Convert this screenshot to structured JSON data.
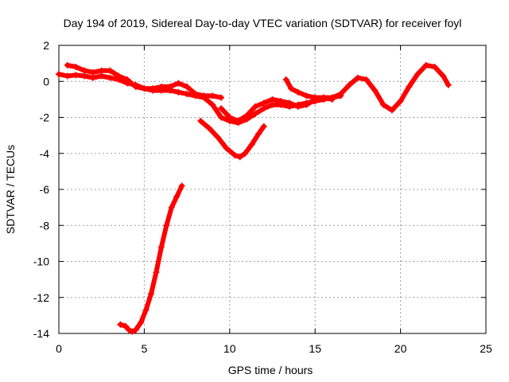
{
  "chart_data": {
    "type": "scatter",
    "title": "Day 194 of 2019, Sidereal Day-to-day VTEC variation (SDTVAR) for receiver foyl",
    "xlabel": "GPS time / hours",
    "ylabel": "SDTVAR / TECUs",
    "xlim": [
      0,
      25
    ],
    "ylim": [
      -14,
      2
    ],
    "xticks": [
      "0",
      "5",
      "10",
      "15",
      "20",
      "25"
    ],
    "yticks": [
      "2",
      "0",
      "-2",
      "-4",
      "-6",
      "-8",
      "-10",
      "-12",
      "-14"
    ],
    "grid": true,
    "marker_color": "#ff0000",
    "series": [
      {
        "name": "main-track",
        "x": [
          0.0,
          0.5,
          1.0,
          1.5,
          2.0,
          2.5,
          3.0,
          3.5,
          4.0,
          4.5,
          5.0,
          5.5,
          6.0,
          6.5,
          7.0,
          7.5,
          8.0,
          8.5,
          9.0,
          9.5,
          10.0,
          10.5,
          11.0,
          11.5,
          12.0,
          12.5,
          13.0,
          13.5,
          14.0,
          14.5,
          15.0,
          15.5,
          16.0,
          16.5,
          17.0,
          17.5,
          18.0,
          18.5,
          19.0,
          19.5,
          20.0,
          20.5,
          21.0,
          21.5,
          22.0,
          22.5,
          22.8
        ],
        "y": [
          0.4,
          0.3,
          0.35,
          0.3,
          0.2,
          0.3,
          0.2,
          0.1,
          -0.1,
          -0.2,
          -0.4,
          -0.5,
          -0.5,
          -0.5,
          -0.6,
          -0.7,
          -0.8,
          -0.9,
          -1.3,
          -2.0,
          -2.2,
          -2.3,
          -2.1,
          -1.8,
          -1.5,
          -1.3,
          -1.3,
          -1.4,
          -1.3,
          -1.2,
          -1.1,
          -1.0,
          -0.9,
          -0.7,
          -0.2,
          0.2,
          0.1,
          -0.5,
          -1.3,
          -1.6,
          -1.1,
          -0.3,
          0.4,
          0.9,
          0.8,
          0.3,
          -0.2
        ]
      },
      {
        "name": "upper-band",
        "x": [
          0.5,
          1.0,
          1.5,
          2.0,
          2.5,
          3.0,
          3.5,
          4.0,
          4.5,
          5.0,
          5.5,
          6.0,
          6.5,
          7.0,
          7.5,
          8.0,
          8.5,
          9.0,
          9.5
        ],
        "y": [
          0.9,
          0.8,
          0.6,
          0.5,
          0.6,
          0.6,
          0.3,
          0.1,
          -0.3,
          -0.4,
          -0.4,
          -0.3,
          -0.3,
          -0.1,
          -0.3,
          -0.7,
          -0.8,
          -0.8,
          -0.9
        ]
      },
      {
        "name": "secondary-track",
        "x": [
          9.5,
          10.0,
          10.5,
          11.0,
          11.5,
          12.0,
          12.5,
          13.0,
          13.5,
          14.0,
          14.5,
          15.0,
          15.5,
          16.0,
          16.5
        ],
        "y": [
          -1.5,
          -2.0,
          -2.2,
          -1.9,
          -1.4,
          -1.2,
          -1.0,
          -1.1,
          -1.2,
          -1.4,
          -1.3,
          -1.0,
          -0.9,
          -0.9,
          -0.8
        ]
      },
      {
        "name": "upper-branch",
        "x": [
          13.3,
          13.6,
          14.0,
          14.5,
          15.0,
          15.5,
          16.0
        ],
        "y": [
          0.1,
          -0.4,
          -0.6,
          -0.8,
          -0.9,
          -0.9,
          -1.0
        ]
      },
      {
        "name": "dip-track",
        "x": [
          8.3,
          8.8,
          9.3,
          9.8,
          10.3,
          10.6,
          10.9,
          11.3,
          11.7,
          12.0
        ],
        "y": [
          -2.2,
          -2.6,
          -3.1,
          -3.7,
          -4.1,
          -4.2,
          -4.0,
          -3.5,
          -2.9,
          -2.5
        ]
      },
      {
        "name": "steep-track",
        "x": [
          3.6,
          3.9,
          4.1,
          4.3,
          4.5,
          4.8,
          5.1,
          5.4,
          5.7,
          6.0,
          6.3,
          6.6,
          6.9,
          7.2
        ],
        "y": [
          -13.5,
          -13.6,
          -13.8,
          -13.9,
          -13.8,
          -13.4,
          -12.7,
          -11.8,
          -10.6,
          -9.2,
          -8.0,
          -7.0,
          -6.4,
          -5.8
        ]
      }
    ]
  }
}
